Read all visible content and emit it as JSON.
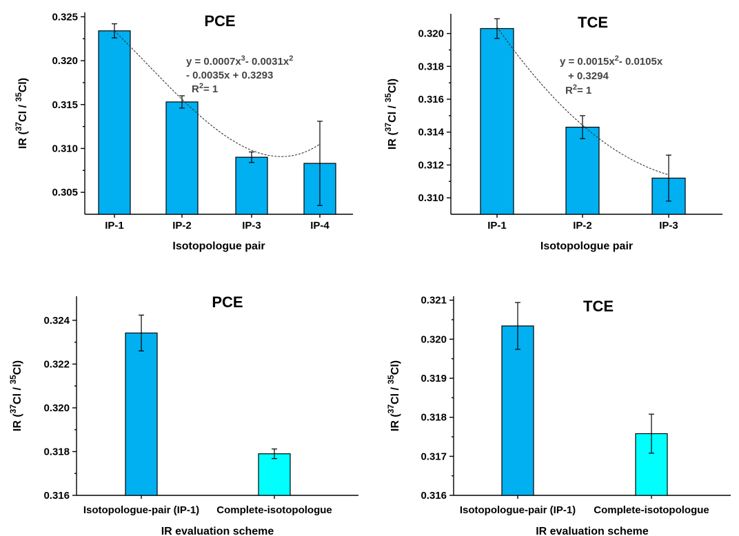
{
  "chart_data": [
    {
      "type": "bar",
      "title": "PCE",
      "xlabel": "Isotopologue pair",
      "ylabel": "IR (37Cl / 35Cl)",
      "categories": [
        "IP-1",
        "IP-2",
        "IP-3",
        "IP-4"
      ],
      "values": [
        0.3234,
        0.3153,
        0.309,
        0.3083
      ],
      "errors": [
        0.0008,
        0.0007,
        0.0006,
        0.0048
      ],
      "ylim": [
        0.3025,
        0.3255
      ],
      "yticks": [
        "0.305",
        "0.310",
        "0.315",
        "0.320",
        "0.325"
      ],
      "fit_equation": [
        "y = 0.0007x3- 0.0031x2",
        "- 0.0035x + 0.3293",
        "R2= 1"
      ],
      "fit_coeffs": [
        0.3293,
        -0.0035,
        -0.0031,
        0.0007
      ],
      "bar_color": "#00b0f0"
    },
    {
      "type": "bar",
      "title": "TCE",
      "xlabel": "Isotopologue pair",
      "ylabel": "IR (37Cl / 35Cl)",
      "categories": [
        "IP-1",
        "IP-2",
        "IP-3"
      ],
      "values": [
        0.3203,
        0.3143,
        0.3112
      ],
      "errors": [
        0.0006,
        0.0007,
        0.0014
      ],
      "ylim": [
        0.309,
        0.3212
      ],
      "yticks": [
        "0.310",
        "0.312",
        "0.314",
        "0.316",
        "0.318",
        "0.320"
      ],
      "fit_equation": [
        "y = 0.0015x2- 0.0105x",
        "+ 0.3294",
        "R2= 1"
      ],
      "fit_coeffs": [
        0.3294,
        -0.0105,
        0.0015
      ],
      "bar_color": "#00b0f0"
    },
    {
      "type": "bar",
      "title": "PCE",
      "xlabel": "IR evaluation scheme",
      "ylabel": "IR (37Cl / 35Cl)",
      "categories": [
        "Isotopologue-pair (IP-1)",
        "Complete-isotopologue"
      ],
      "values": [
        0.32342,
        0.3179
      ],
      "errors": [
        0.00082,
        0.00022
      ],
      "ylim": [
        0.316,
        0.3251
      ],
      "yticks": [
        "0.316",
        "0.318",
        "0.320",
        "0.322",
        "0.324"
      ],
      "bar_colors": [
        "#00b0f0",
        "#00ffff"
      ]
    },
    {
      "type": "bar",
      "title": "TCE",
      "xlabel": "IR evaluation scheme",
      "ylabel": "IR (37Cl / 35Cl)",
      "categories": [
        "Isotopologue-pair (IP-1)",
        "Complete-isotopologue"
      ],
      "values": [
        0.32034,
        0.31758
      ],
      "errors": [
        0.0006,
        0.0005
      ],
      "ylim": [
        0.316,
        0.3211
      ],
      "yticks": [
        "0.316",
        "0.317",
        "0.318",
        "0.319",
        "0.320",
        "0.321"
      ],
      "bar_colors": [
        "#00b0f0",
        "#00ffff"
      ]
    }
  ]
}
